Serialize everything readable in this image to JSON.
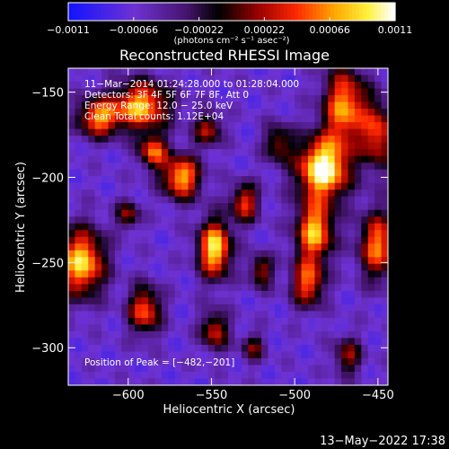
{
  "chart_data": {
    "type": "heatmap",
    "title": "Reconstructed RHESSI Image",
    "xlabel": "Heliocentric X (arcsec)",
    "ylabel": "Heliocentric Y (arcsec)",
    "xlim": [
      -636,
      -444
    ],
    "ylim": [
      -322,
      -136
    ],
    "x_ticks": [
      -600,
      -550,
      -500,
      -450
    ],
    "x_tick_labels": [
      "−600",
      "−550",
      "−500",
      "−450"
    ],
    "y_ticks": [
      -150,
      -200,
      -250,
      -300
    ],
    "y_tick_labels": [
      "−150",
      "−200",
      "−250",
      "−300"
    ],
    "colorbar": {
      "range": [
        -0.0011,
        0.0011
      ],
      "tick_labels": [
        "−0.0011",
        "−0.00066",
        "−0.00022",
        "0.00022",
        "0.00066",
        "0.0011"
      ],
      "unit_label": "(photons cm⁻² s⁻¹ asec⁻²)"
    },
    "annotations": [
      "11−Mar−2014 01:24:28.000 to 01:28:04.000",
      "Detectors: 3F 4F 5F 6F 7F 8F, Att 0",
      "Energy Range: 12.0 − 25.0 keV",
      "Clean     Total counts: 1.12E+04"
    ],
    "peak_label": "Position of Peak = [−482,−201]",
    "peak": [
      -482,
      -201
    ],
    "blobs": [
      {
        "x": -483,
        "y": -195,
        "sx": 11,
        "sy": 13,
        "a": 1.0
      },
      {
        "x": -488,
        "y": -232,
        "sx": 8,
        "sy": 12,
        "a": 0.8
      },
      {
        "x": -492,
        "y": -262,
        "sx": 7,
        "sy": 10,
        "a": 0.65
      },
      {
        "x": -470,
        "y": -158,
        "sx": 9,
        "sy": 16,
        "a": 0.75
      },
      {
        "x": -450,
        "y": -175,
        "sx": 7,
        "sy": 14,
        "a": 0.6
      },
      {
        "x": -548,
        "y": -242,
        "sx": 7,
        "sy": 12,
        "a": 0.9
      },
      {
        "x": -568,
        "y": -200,
        "sx": 8,
        "sy": 9,
        "a": 0.8
      },
      {
        "x": -585,
        "y": -185,
        "sx": 6,
        "sy": 7,
        "a": 0.65
      },
      {
        "x": -592,
        "y": -158,
        "sx": 12,
        "sy": 10,
        "a": 0.8
      },
      {
        "x": -618,
        "y": -165,
        "sx": 9,
        "sy": 8,
        "a": 0.7
      },
      {
        "x": -628,
        "y": -250,
        "sx": 10,
        "sy": 14,
        "a": 0.85
      },
      {
        "x": -590,
        "y": -278,
        "sx": 7,
        "sy": 10,
        "a": 0.65
      },
      {
        "x": -548,
        "y": -290,
        "sx": 6,
        "sy": 8,
        "a": 0.55
      },
      {
        "x": -530,
        "y": -215,
        "sx": 6,
        "sy": 8,
        "a": 0.6
      },
      {
        "x": -520,
        "y": -255,
        "sx": 5,
        "sy": 7,
        "a": 0.5
      },
      {
        "x": -552,
        "y": -172,
        "sx": 6,
        "sy": 7,
        "a": 0.5
      },
      {
        "x": -450,
        "y": -240,
        "sx": 8,
        "sy": 14,
        "a": 0.7
      },
      {
        "x": -468,
        "y": -305,
        "sx": 6,
        "sy": 8,
        "a": 0.45
      },
      {
        "x": -600,
        "y": -222,
        "sx": 5,
        "sy": 6,
        "a": 0.45
      },
      {
        "x": -510,
        "y": -180,
        "sx": 6,
        "sy": 8,
        "a": 0.45
      },
      {
        "x": -525,
        "y": -300,
        "sx": 5,
        "sy": 6,
        "a": 0.4
      }
    ]
  },
  "footer": {
    "timestamp": "13−May−2022 17:38"
  }
}
